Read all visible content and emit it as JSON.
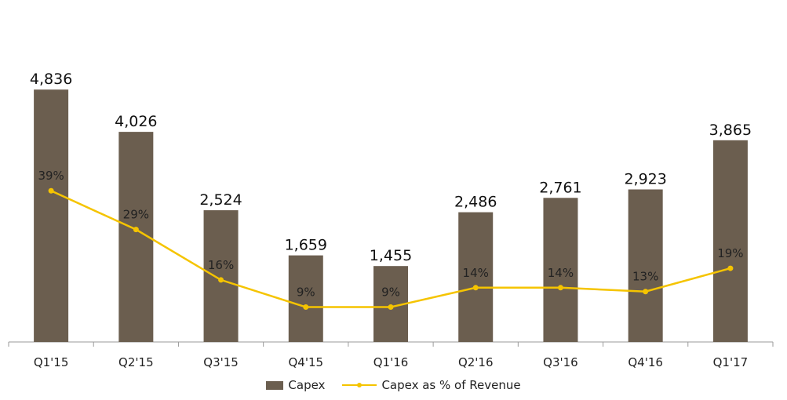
{
  "chart_data": {
    "type": "bar",
    "title": "",
    "xlabel": "",
    "ylabel": "",
    "categories": [
      "Q1'15",
      "Q2'15",
      "Q3'15",
      "Q4'15",
      "Q1'16",
      "Q2'16",
      "Q3'16",
      "Q4'16",
      "Q1'17"
    ],
    "series": [
      {
        "name": "Capex",
        "type": "bar",
        "color": "#6b5e4f",
        "values": [
          4836,
          4026,
          2524,
          1659,
          1455,
          2486,
          2761,
          2923,
          3865
        ],
        "labels": [
          "4,836",
          "4,026",
          "2,524",
          "1,659",
          "1,455",
          "2,486",
          "2,761",
          "2,923",
          "3,865"
        ]
      },
      {
        "name": "Capex as % of Revenue",
        "type": "line",
        "color": "#f5c400",
        "values": [
          39,
          29,
          16,
          9,
          9,
          14,
          14,
          13,
          19
        ],
        "labels": [
          "39%",
          "29%",
          "16%",
          "9%",
          "9%",
          "14%",
          "14%",
          "13%",
          "19%"
        ]
      }
    ],
    "ylim": [
      0,
      5200
    ],
    "y2lim": [
      0,
      70
    ],
    "grid": false,
    "legend": "bottom-center"
  }
}
